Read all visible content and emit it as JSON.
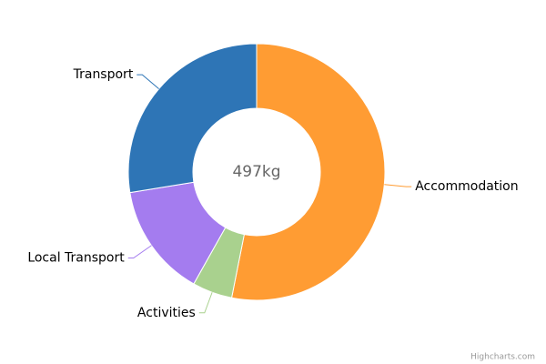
{
  "chart_data": {
    "type": "donut",
    "center_label": "497kg",
    "categories": [
      "Accommodation",
      "Activities",
      "Local Transport",
      "Transport"
    ],
    "values": [
      264,
      25,
      71,
      137
    ],
    "colors": [
      "#ff9c33",
      "#a9d18e",
      "#a47cef",
      "#2e75b6"
    ],
    "credit": "Highcharts.com"
  }
}
